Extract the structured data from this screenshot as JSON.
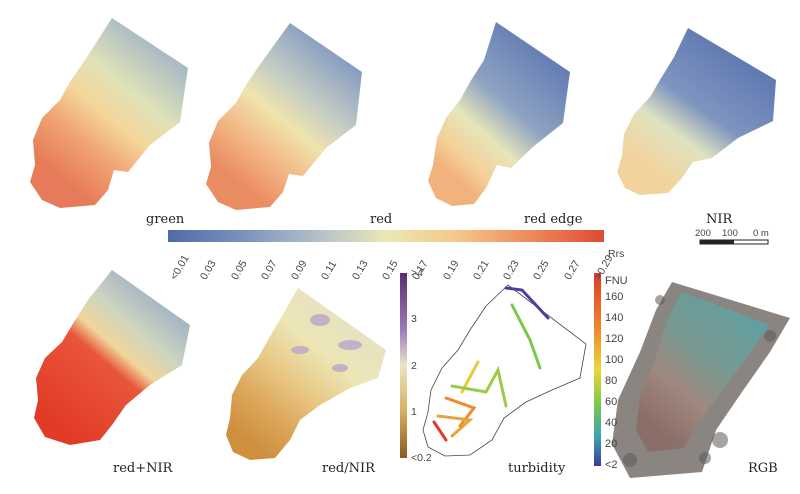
{
  "colorbar": {
    "band_labels": [
      "green",
      "red",
      "red edge"
    ],
    "nir_label": "NIR",
    "ticks": [
      "<0.01",
      "0.03",
      "0.05",
      "0.07",
      "0.09",
      "0.11",
      "0.13",
      "0.15",
      "0.17",
      "0.19",
      "0.21",
      "0.23",
      "0.25",
      "0.27",
      ">0.29"
    ],
    "unit": "Rrs",
    "colors": [
      "#4f6aa8",
      "#7d94bf",
      "#b9c4c9",
      "#e9e8b4",
      "#f6c88a",
      "#ee8a5a",
      "#df4a33"
    ]
  },
  "scalebar": {
    "labels": [
      "200",
      "100",
      "0 m"
    ]
  },
  "ratio_bar": {
    "ticks": [
      ">4",
      "3",
      "2",
      "1",
      "<0.2"
    ],
    "colors": [
      "#5a2d6e",
      "#9a78b9",
      "#e8e6c2",
      "#d8ad62",
      "#8a5a22"
    ]
  },
  "turbidity_bar": {
    "unit": "FNU",
    "ticks": [
      "160",
      "140",
      "120",
      "100",
      "80",
      "60",
      "40",
      "20",
      "<2"
    ],
    "colors": [
      "#e03a2a",
      "#f08a2a",
      "#e9d83a",
      "#7ac84a",
      "#3aa3b0",
      "#3d3a9a"
    ]
  },
  "panel_labels": [
    "red+NIR",
    "red/NIR",
    "turbidity",
    "RGB"
  ]
}
